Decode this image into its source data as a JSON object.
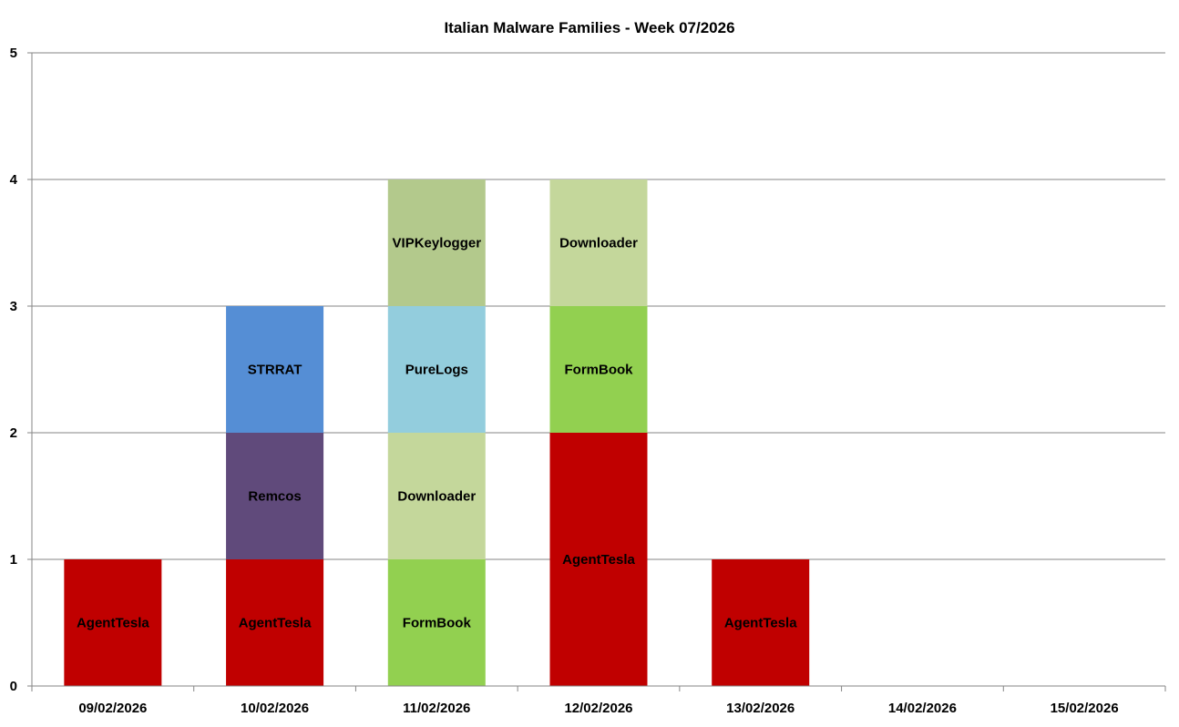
{
  "chart_data": {
    "type": "bar",
    "stacked": true,
    "title": "Italian Malware Families - Week 07/2026",
    "xlabel": "",
    "ylabel": "",
    "ylim": [
      0,
      5
    ],
    "yticks": [
      "0",
      "1",
      "2",
      "3",
      "4",
      "5"
    ],
    "grid": true,
    "legend": "none",
    "categories": [
      "09/02/2026",
      "10/02/2026",
      "11/02/2026",
      "12/02/2026",
      "13/02/2026",
      "14/02/2026",
      "15/02/2026"
    ],
    "stacks": [
      [
        {
          "family": "AgentTesla",
          "value": 1
        }
      ],
      [
        {
          "family": "AgentTesla",
          "value": 1
        },
        {
          "family": "Remcos",
          "value": 1
        },
        {
          "family": "STRRAT",
          "value": 1
        }
      ],
      [
        {
          "family": "FormBook",
          "value": 1
        },
        {
          "family": "Downloader",
          "value": 1
        },
        {
          "family": "PureLogs",
          "value": 1
        },
        {
          "family": "VIPKeylogger",
          "value": 1
        }
      ],
      [
        {
          "family": "AgentTesla",
          "value": 2
        },
        {
          "family": "FormBook",
          "value": 1
        },
        {
          "family": "Downloader",
          "value": 1
        }
      ],
      [
        {
          "family": "AgentTesla",
          "value": 1
        }
      ],
      [],
      []
    ],
    "colors": {
      "AgentTesla": "#C00000",
      "Remcos": "#604A7B",
      "STRRAT": "#558ED5",
      "FormBook": "#92D050",
      "Downloader": "#C4D79B",
      "PureLogs": "#93CDDD",
      "VIPKeylogger": "#B3C98C"
    }
  }
}
